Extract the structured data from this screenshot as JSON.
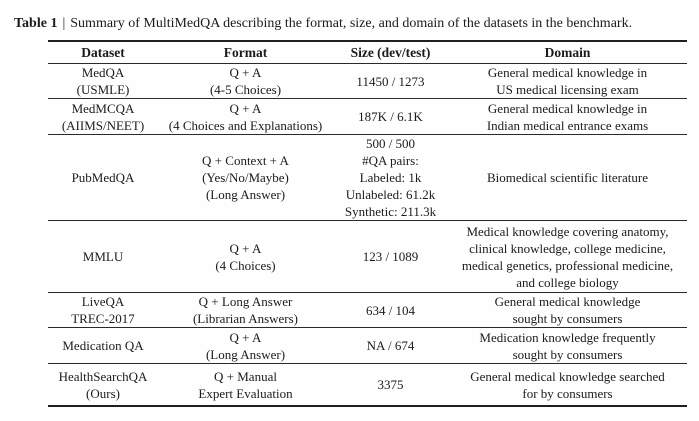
{
  "caption": {
    "label": "Table 1",
    "separator": "|",
    "text": "Summary of MultiMedQA describing the format, size, and domain of the datasets in the benchmark."
  },
  "table": {
    "headers": [
      "Dataset",
      "Format",
      "Size (dev/test)",
      "Domain"
    ],
    "rows": [
      {
        "dataset": [
          "MedQA",
          "(USMLE)"
        ],
        "format": [
          "Q + A",
          "(4-5 Choices)"
        ],
        "size": [
          "11450 / 1273"
        ],
        "domain": [
          "General medical knowledge in",
          "US medical licensing exam"
        ]
      },
      {
        "dataset": [
          "MedMCQA",
          "(AIIMS/NEET)"
        ],
        "format": [
          "Q + A",
          "(4 Choices and Explanations)"
        ],
        "size": [
          "187K / 6.1K"
        ],
        "domain": [
          "General medical knowledge in",
          "Indian medical entrance exams"
        ]
      },
      {
        "dataset": [
          "PubMedQA"
        ],
        "format": [
          "Q + Context + A",
          "(Yes/No/Maybe)",
          "(Long Answer)"
        ],
        "size": [
          "500 / 500",
          "#QA pairs:",
          "Labeled: 1k",
          "Unlabeled: 61.2k",
          "Synthetic: 211.3k"
        ],
        "domain": [
          "Biomedical scientific literature"
        ]
      },
      {
        "dataset": [
          "MMLU"
        ],
        "format": [
          "Q + A",
          "(4 Choices)"
        ],
        "size": [
          "123 / 1089"
        ],
        "domain": [
          "Medical knowledge covering anatomy,",
          "clinical knowledge, college medicine,",
          "medical genetics, professional medicine,",
          "and college biology"
        ]
      },
      {
        "dataset": [
          "LiveQA",
          "TREC-2017"
        ],
        "format": [
          "Q + Long Answer",
          "(Librarian Answers)"
        ],
        "size": [
          "634 / 104"
        ],
        "domain": [
          "General medical knowledge",
          "sought by consumers"
        ]
      },
      {
        "dataset": [
          "Medication QA"
        ],
        "format": [
          "Q + A",
          "(Long Answer)"
        ],
        "size": [
          "NA / 674"
        ],
        "domain": [
          "Medication knowledge frequently",
          "sought by consumers"
        ]
      },
      {
        "dataset": [
          "HealthSearchQA",
          "(Ours)"
        ],
        "format": [
          "Q + Manual",
          "Expert Evaluation"
        ],
        "size": [
          "3375"
        ],
        "domain": [
          "General medical knowledge searched",
          "for by consumers"
        ]
      }
    ]
  }
}
